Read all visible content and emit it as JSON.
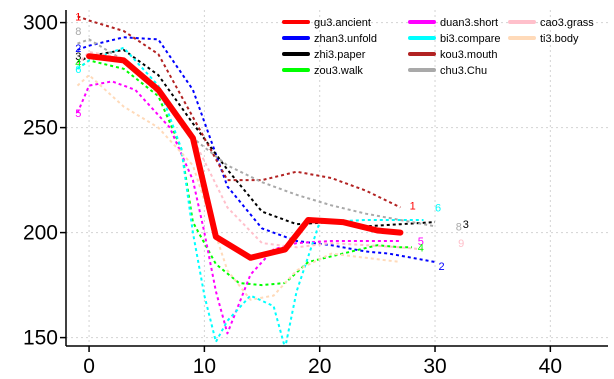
{
  "chart_data": {
    "type": "line",
    "title": "",
    "xlabel": "",
    "ylabel": "",
    "xlim": [
      -2,
      45
    ],
    "ylim": [
      146,
      306
    ],
    "x_ticks": [
      0,
      10,
      20,
      30,
      40
    ],
    "y_ticks": [
      150,
      200,
      250,
      300
    ],
    "grid": true,
    "legend_position": "top-right",
    "series": [
      {
        "name": "gu3.ancient",
        "color": "#ff0000",
        "style": "solid",
        "width": 6,
        "x": [
          0,
          3,
          6,
          9,
          11,
          14,
          17,
          19,
          22,
          25,
          27
        ],
        "y": [
          284,
          282,
          268,
          245,
          198,
          188,
          192,
          206,
          205,
          201,
          200
        ]
      },
      {
        "name": "zhan3.unfold",
        "color": "#0000ff",
        "style": "dotted",
        "width": 2,
        "end_label": "2",
        "x": [
          -1,
          0,
          3,
          6,
          9,
          12,
          15,
          18,
          21,
          24,
          26,
          28,
          30
        ],
        "y": [
          287,
          289,
          293,
          292,
          268,
          222,
          202,
          196,
          194,
          191,
          190,
          188,
          186
        ]
      },
      {
        "name": "zhi3.paper",
        "color": "#000000",
        "style": "dotted",
        "width": 2,
        "end_label": "3",
        "x": [
          -1,
          0,
          3,
          6,
          9,
          12,
          15,
          18,
          21,
          24,
          27,
          30
        ],
        "y": [
          281,
          284,
          287,
          275,
          252,
          230,
          210,
          204,
          205,
          203,
          204,
          205
        ]
      },
      {
        "name": "zou3.walk",
        "color": "#00ff00",
        "style": "dotted",
        "width": 2,
        "end_label": "4",
        "x": [
          -1,
          0,
          3,
          6,
          8,
          9,
          11,
          13,
          15,
          17,
          19,
          22,
          25,
          27,
          28
        ],
        "y": [
          278,
          282,
          278,
          265,
          240,
          205,
          185,
          176,
          175,
          176,
          186,
          190,
          194,
          193,
          193
        ]
      },
      {
        "name": "duan3.short",
        "color": "#ff00ff",
        "style": "dotted",
        "width": 2,
        "end_label": "5",
        "x": [
          -1,
          0,
          2,
          4,
          7,
          9,
          10,
          11,
          12,
          14,
          16,
          18,
          21,
          24,
          27
        ],
        "y": [
          257,
          270,
          272,
          268,
          250,
          225,
          200,
          172,
          152,
          180,
          192,
          195,
          196,
          196,
          196
        ]
      },
      {
        "name": "bi3.compare",
        "color": "#00ffff",
        "style": "dotted",
        "width": 2,
        "end_label": "6",
        "x": [
          -1,
          0,
          3,
          6,
          8,
          9,
          10,
          11,
          12,
          14,
          16,
          17,
          18,
          20,
          24,
          27,
          29
        ],
        "y": [
          278,
          282,
          288,
          270,
          240,
          200,
          170,
          148,
          158,
          170,
          165,
          145,
          172,
          205,
          206,
          206,
          206
        ]
      },
      {
        "name": "kou3.mouth",
        "color": "#b22222",
        "style": "dotted",
        "width": 2,
        "end_label": "7",
        "x": [
          -1,
          0,
          3,
          6,
          9,
          12,
          15,
          18,
          21,
          24,
          27
        ],
        "y": [
          303,
          301,
          296,
          285,
          255,
          225,
          225,
          229,
          226,
          220,
          212
        ]
      },
      {
        "name": "chu3.Chu",
        "color": "#a9a9a9",
        "style": "dotted",
        "width": 2,
        "end_label": "8",
        "x": [
          -1,
          0,
          3,
          6,
          9,
          12,
          15,
          18,
          21,
          24,
          27,
          30
        ],
        "y": [
          290,
          292,
          282,
          268,
          245,
          232,
          224,
          218,
          213,
          209,
          206,
          203
        ]
      },
      {
        "name": "cao3.grass",
        "color": "#ffc0cb",
        "style": "dotted",
        "width": 2,
        "end_label": "9",
        "x": [
          -1,
          0,
          3,
          6,
          9,
          12,
          15,
          18,
          21,
          24,
          27,
          29
        ],
        "y": [
          280,
          286,
          283,
          266,
          245,
          212,
          195,
          193,
          195,
          194,
          193,
          192
        ]
      },
      {
        "name": "ti3.body",
        "color": "#ffdab9",
        "style": "dotted",
        "width": 2,
        "x": [
          -1,
          0,
          3,
          6,
          9,
          12,
          14,
          16,
          18,
          21,
          24,
          27
        ],
        "y": [
          270,
          275,
          260,
          250,
          232,
          182,
          168,
          170,
          182,
          190,
          188,
          186
        ]
      }
    ],
    "start_labels": [
      {
        "text": "1",
        "color": "#ff0000",
        "x": -1.2,
        "y": 303
      },
      {
        "text": "8",
        "color": "#a9a9a9",
        "x": -1.2,
        "y": 296
      },
      {
        "text": "2",
        "color": "#0000ff",
        "x": -1.2,
        "y": 288
      },
      {
        "text": "3",
        "color": "#000000",
        "x": -1.2,
        "y": 284
      },
      {
        "text": "4",
        "color": "#00ff00",
        "x": -1.2,
        "y": 281
      },
      {
        "text": "6",
        "color": "#00ffff",
        "x": -1.2,
        "y": 278
      },
      {
        "text": "5",
        "color": "#ff00ff",
        "x": -1.2,
        "y": 257
      }
    ],
    "end_labels": [
      {
        "text": "1",
        "color": "#ff0000",
        "x": 27.8,
        "y": 213
      },
      {
        "text": "6",
        "color": "#00ffff",
        "x": 30,
        "y": 212
      },
      {
        "text": "8",
        "color": "#a9a9a9",
        "x": 31.8,
        "y": 203
      },
      {
        "text": "3",
        "color": "#000000",
        "x": 32.4,
        "y": 204
      },
      {
        "text": "5",
        "color": "#ff00ff",
        "x": 28.5,
        "y": 196
      },
      {
        "text": "9",
        "color": "#ffc0cb",
        "x": 32,
        "y": 195
      },
      {
        "text": "4",
        "color": "#00ff00",
        "x": 28.5,
        "y": 193
      },
      {
        "text": "2",
        "color": "#0000ff",
        "x": 30.3,
        "y": 184
      }
    ]
  }
}
